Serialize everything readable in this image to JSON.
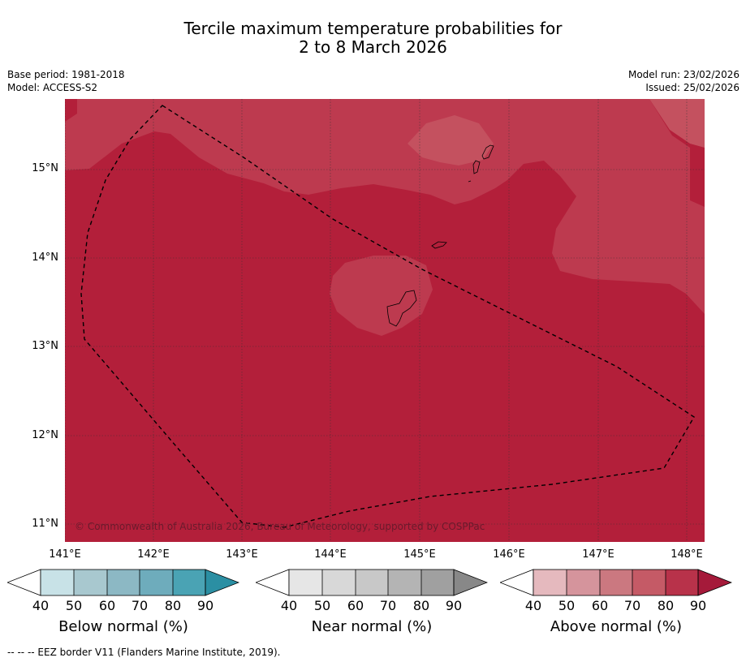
{
  "title": {
    "line1": "Tercile maximum temperature probabilities for",
    "line2": "2 to 8 March 2026"
  },
  "info": {
    "base_period": "Base period: 1981-2018",
    "model": "Model: ACCESS-S2",
    "model_run": "Model run: 23/02/2026",
    "issued": "Issued: 25/02/2026"
  },
  "map": {
    "latitude_labels": [
      "15°N",
      "14°N",
      "13°N",
      "12°N",
      "11°N"
    ],
    "longitude_labels": [
      "141°E",
      "142°E",
      "143°E",
      "144°E",
      "145°E",
      "146°E",
      "147°E",
      "148°E"
    ],
    "copyright": "© Commonwealth of Australia 2026, Bureau of Meteorology, supported by COSPPac",
    "colors": {
      "above_80_90": "#b31f3a",
      "above_70_80": "#bd3a4f",
      "above_60_70": "#c4515f"
    }
  },
  "legends": [
    {
      "label": "Below normal (%)",
      "ticks": [
        "40",
        "50",
        "60",
        "70",
        "80",
        "90"
      ],
      "colors": [
        "#ffffff",
        "#c8e2e7",
        "#a8c8cf",
        "#8cb8c4",
        "#6eacbc",
        "#4aa3b4",
        "#2b8fa3"
      ]
    },
    {
      "label": "Near normal (%)",
      "ticks": [
        "40",
        "50",
        "60",
        "70",
        "80",
        "90"
      ],
      "colors": [
        "#ffffff",
        "#e6e6e6",
        "#d8d8d8",
        "#c8c8c8",
        "#b4b4b4",
        "#a0a0a0",
        "#888888"
      ]
    },
    {
      "label": "Above normal (%)",
      "ticks": [
        "40",
        "50",
        "60",
        "70",
        "80",
        "90"
      ],
      "colors": [
        "#ffffff",
        "#e5b9be",
        "#d5949c",
        "#cb7880",
        "#c55a66",
        "#b8324a",
        "#a51a3a"
      ]
    }
  ],
  "footer": "--  --  -- EEZ border V11 (Flanders Marine Institute, 2019)."
}
